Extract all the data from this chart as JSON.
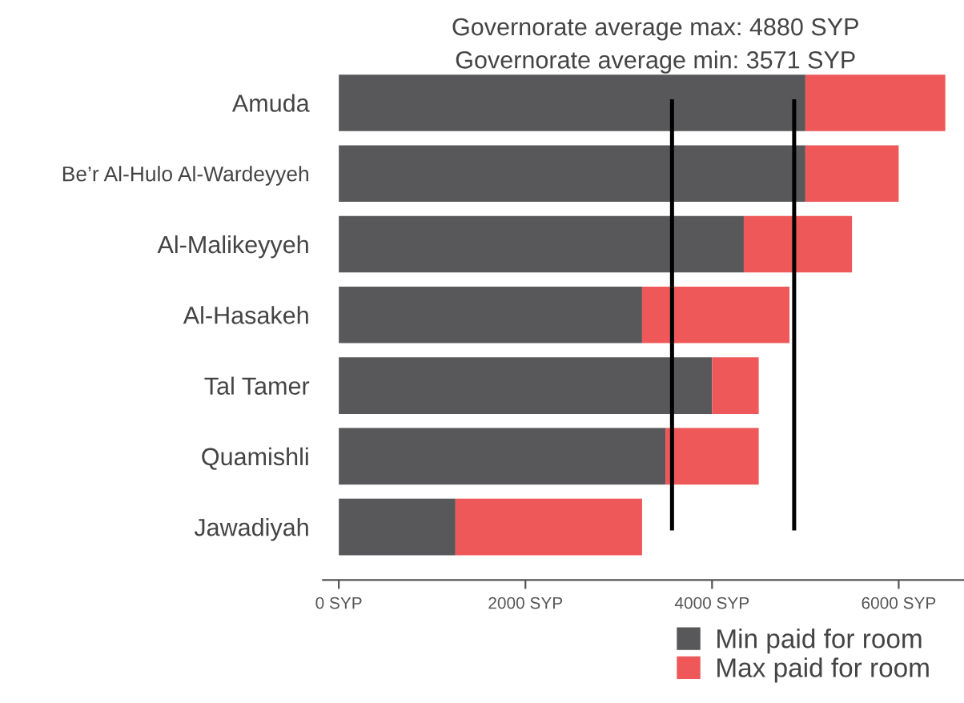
{
  "chart_data": {
    "type": "bar",
    "orientation": "horizontal",
    "stacked": true,
    "categories": [
      "Amuda",
      "Be’r Al-Hulo Al-Wardeyyeh",
      "Al-Malikeyyeh",
      "Al-Hasakeh",
      "Tal Tamer",
      "Quamishli",
      "Jawadiyah"
    ],
    "series": [
      {
        "name": "Min paid for room",
        "color": "#58585a",
        "values": [
          5000,
          5000,
          4340,
          3250,
          4000,
          3500,
          1250
        ]
      },
      {
        "name": "Max paid for room",
        "color": "#ee5858",
        "values": [
          1500,
          1000,
          1160,
          1580,
          500,
          1000,
          2000
        ]
      }
    ],
    "xlim": [
      -170,
      6700
    ],
    "xticks": [
      {
        "value": 0,
        "label": "0 SYP"
      },
      {
        "value": 2000,
        "label": "2000 SYP"
      },
      {
        "value": 4000,
        "label": "4000 SYP"
      },
      {
        "value": 6000,
        "label": "6000 SYP"
      }
    ],
    "ref_lines": [
      {
        "axis": "x",
        "value": 4880,
        "color": "#000000"
      },
      {
        "axis": "x",
        "value": 3571,
        "color": "#000000"
      }
    ],
    "annotations": [
      "Governorate average max: 4880 SYP",
      "Governorate average min: 3571 SYP"
    ],
    "grid": false,
    "legend": "bottom right"
  }
}
